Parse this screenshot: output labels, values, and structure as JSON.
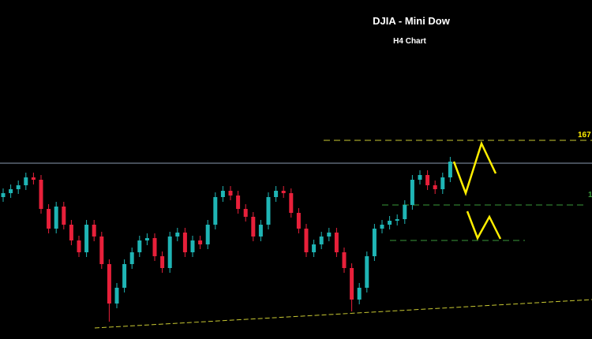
{
  "chart_data": {
    "type": "candlestick",
    "title": "DJIA - Mini Dow",
    "subtitle": "H4 Chart",
    "annotations": [
      "167",
      "1"
    ],
    "up_color": "#1fb5b5",
    "down_color": "#e8203a",
    "ylim": [
      0,
      430
    ],
    "open": [
      180,
      185,
      190,
      195,
      205,
      202,
      165,
      140,
      168,
      145,
      125,
      110,
      145,
      130,
      95,
      45,
      65,
      95,
      110,
      125,
      128,
      105,
      90,
      130,
      135,
      110,
      125,
      120,
      145,
      180,
      188,
      182,
      165,
      155,
      130,
      145,
      180,
      188,
      185,
      160,
      140,
      110,
      120,
      130,
      135,
      110,
      90,
      50,
      65,
      105,
      140,
      145,
      150,
      152,
      170,
      202,
      208,
      195,
      190,
      205
    ],
    "high": [
      191,
      196,
      201,
      211,
      211,
      208,
      171,
      174,
      174,
      151,
      131,
      151,
      151,
      136,
      101,
      71,
      101,
      116,
      131,
      134,
      134,
      111,
      136,
      141,
      141,
      131,
      131,
      151,
      186,
      194,
      194,
      188,
      171,
      161,
      151,
      186,
      194,
      194,
      191,
      166,
      146,
      126,
      136,
      141,
      141,
      116,
      96,
      71,
      111,
      146,
      151,
      156,
      158,
      176,
      208,
      214,
      214,
      201,
      211,
      231
    ],
    "low": [
      174,
      179,
      184,
      189,
      196,
      159,
      134,
      134,
      139,
      119,
      104,
      104,
      124,
      89,
      22,
      39,
      59,
      89,
      104,
      119,
      99,
      84,
      84,
      124,
      104,
      104,
      114,
      114,
      139,
      174,
      176,
      159,
      149,
      124,
      124,
      139,
      174,
      179,
      154,
      134,
      104,
      104,
      114,
      124,
      104,
      84,
      35,
      44,
      59,
      99,
      134,
      139,
      144,
      146,
      164,
      196,
      189,
      184,
      184,
      199
    ],
    "close": [
      185,
      190,
      195,
      205,
      202,
      165,
      140,
      168,
      145,
      125,
      110,
      145,
      130,
      95,
      45,
      65,
      95,
      110,
      125,
      128,
      105,
      90,
      130,
      135,
      110,
      125,
      120,
      145,
      180,
      188,
      182,
      165,
      155,
      130,
      145,
      180,
      188,
      185,
      160,
      140,
      110,
      120,
      130,
      135,
      110,
      90,
      50,
      65,
      105,
      140,
      145,
      150,
      152,
      170,
      202,
      208,
      195,
      190,
      205,
      225
    ]
  }
}
